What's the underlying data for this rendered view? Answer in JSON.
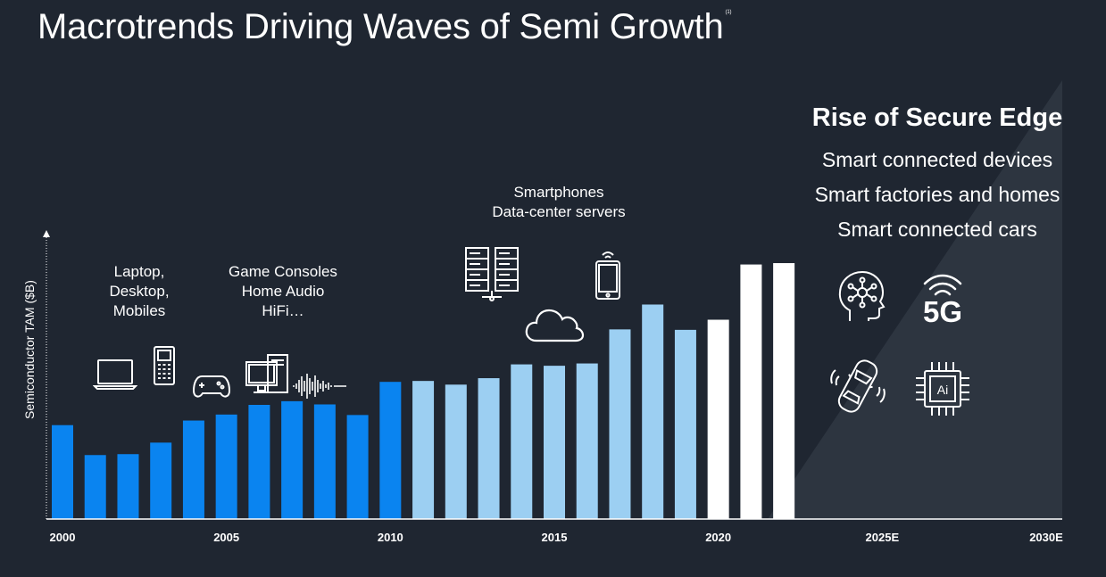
{
  "slide": {
    "title": "Macrotrends Driving Waves of Semi Growth",
    "footnote_marker": "(1)"
  },
  "annotations": {
    "wave1": [
      "Laptop,",
      "Desktop,",
      "Mobiles"
    ],
    "wave2": [
      "Game Consoles",
      "Home Audio",
      "HiFi…"
    ],
    "wave3": [
      "Smartphones",
      "Data-center servers"
    ],
    "edge_title": "Rise of Secure Edge",
    "edge_items": [
      "Smart connected devices",
      "Smart factories and homes",
      "Smart connected cars"
    ]
  },
  "icons": [
    "laptop-icon",
    "feature-phone-icon",
    "gamepad-icon",
    "desktop-computer-icon",
    "sound-wave-icon",
    "server-rack-icon",
    "cloud-icon",
    "smartphone-icon",
    "ai-head-icon",
    "5g-icon",
    "connected-car-icon",
    "ai-chip-icon"
  ],
  "colors": {
    "background": "#1f2631",
    "wave1": "#0a84f0",
    "wave2": "#9ccff2",
    "wave3": "#ffffff",
    "edge_glow": "#3b4450"
  },
  "chart_data": {
    "type": "bar",
    "title": "",
    "ylabel": "Semiconductor  TAM ($B)",
    "xlabel": "",
    "x_ticks": [
      "2000",
      "2005",
      "2010",
      "2015",
      "2020",
      "2025E",
      "2030E"
    ],
    "x_range": [
      2000,
      2030
    ],
    "ylim": [
      0,
      620
    ],
    "grid": false,
    "y_tick_labels": false,
    "series": [
      {
        "x": [
          2000,
          2001,
          2002,
          2003,
          2004,
          2005,
          2006,
          2007,
          2008,
          2009,
          2010
        ],
        "values": [
          204,
          139,
          141,
          166,
          214,
          227,
          248,
          256,
          249,
          226,
          298
        ],
        "color": "#0a84f0"
      },
      {
        "x": [
          2011,
          2012,
          2013,
          2014,
          2015,
          2016,
          2017,
          2018,
          2019
        ],
        "values": [
          300,
          292,
          306,
          336,
          333,
          338,
          412,
          466,
          411
        ],
        "color": "#9ccff2"
      },
      {
        "x": [
          2020,
          2021,
          2022
        ],
        "values": [
          433,
          553,
          556
        ],
        "color": "#ffffff"
      }
    ]
  }
}
